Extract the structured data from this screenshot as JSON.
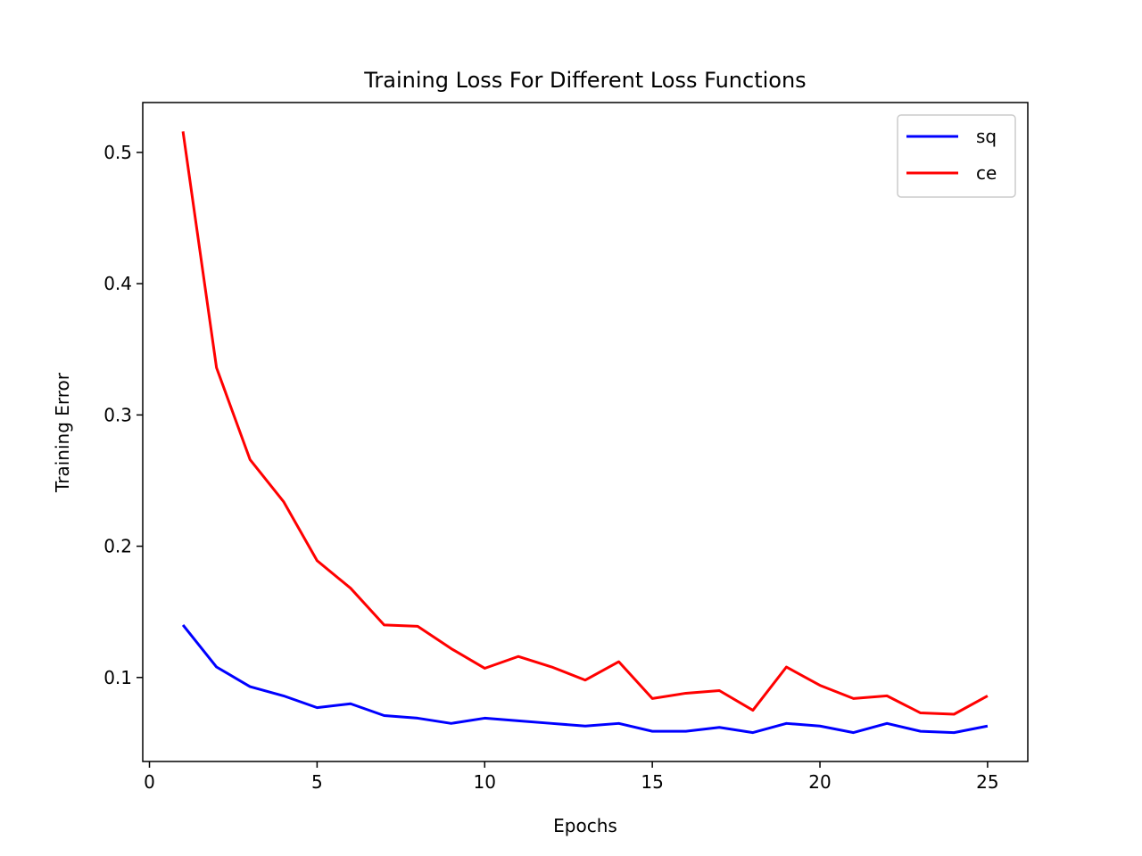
{
  "chart_data": {
    "type": "line",
    "title": "Training Loss For Different Loss Functions",
    "xlabel": "Epochs",
    "ylabel": "Training Error",
    "xlim": [
      -0.2,
      26.2
    ],
    "ylim": [
      0.036,
      0.538
    ],
    "xticks": [
      0,
      5,
      10,
      15,
      20,
      25
    ],
    "yticks": [
      0.1,
      0.2,
      0.3,
      0.4,
      0.5
    ],
    "xtick_labels": [
      "0",
      "5",
      "10",
      "15",
      "20",
      "25"
    ],
    "ytick_labels": [
      "0.1",
      "0.2",
      "0.3",
      "0.4",
      "0.5"
    ],
    "grid": false,
    "legend_position": "top-right",
    "x": [
      1,
      2,
      3,
      4,
      5,
      6,
      7,
      8,
      9,
      10,
      11,
      12,
      13,
      14,
      15,
      16,
      17,
      18,
      19,
      20,
      21,
      22,
      23,
      24,
      25
    ],
    "series": [
      {
        "name": "sq",
        "color": "#0000ff",
        "values": [
          0.14,
          0.108,
          0.093,
          0.086,
          0.077,
          0.08,
          0.071,
          0.069,
          0.065,
          0.069,
          0.067,
          0.065,
          0.063,
          0.065,
          0.059,
          0.059,
          0.062,
          0.058,
          0.065,
          0.063,
          0.058,
          0.065,
          0.059,
          0.058,
          0.063
        ]
      },
      {
        "name": "ce",
        "color": "#ff0000",
        "values": [
          0.516,
          0.336,
          0.266,
          0.234,
          0.189,
          0.168,
          0.14,
          0.139,
          0.122,
          0.107,
          0.116,
          0.108,
          0.098,
          0.112,
          0.084,
          0.088,
          0.09,
          0.075,
          0.108,
          0.094,
          0.084,
          0.086,
          0.073,
          0.072,
          0.086
        ]
      }
    ]
  }
}
